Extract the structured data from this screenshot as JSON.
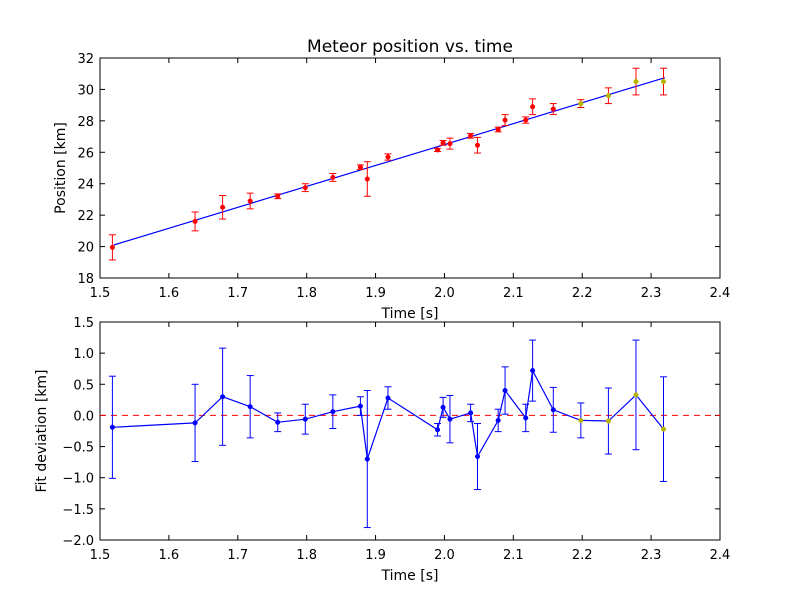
{
  "chart_data": [
    {
      "type": "scatter",
      "title": "Meteor position vs. time",
      "xlabel": "Time [s]",
      "ylabel": "Position [km]",
      "xlim": [
        1.5,
        2.4
      ],
      "ylim": [
        18,
        32
      ],
      "xticks": [
        "1.5",
        "1.6",
        "1.7",
        "1.8",
        "1.9",
        "2.0",
        "2.1",
        "2.2",
        "2.3",
        "2.4"
      ],
      "yticks": [
        "18",
        "20",
        "22",
        "24",
        "26",
        "28",
        "30",
        "32"
      ],
      "grid": false,
      "colors": {
        "points": "#ff0000",
        "late_points": "#b5b500",
        "errorbars": "#ff0000",
        "fit": "#0000ff"
      },
      "fit_line": {
        "x": [
          1.52,
          2.32
        ],
        "y": [
          20.1,
          30.75
        ]
      },
      "series": [
        {
          "x": [
            1.518,
            1.638,
            1.678,
            1.718,
            1.758,
            1.798,
            1.838,
            1.878,
            1.888,
            1.918,
            1.99,
            1.998,
            2.008,
            2.038,
            2.048,
            2.078,
            2.088,
            2.118,
            2.128,
            2.158,
            2.198,
            2.238,
            2.278,
            2.318
          ],
          "y": [
            19.95,
            21.6,
            22.5,
            22.9,
            23.2,
            23.75,
            24.4,
            25.05,
            24.3,
            25.7,
            26.15,
            26.6,
            26.55,
            27.05,
            26.45,
            27.45,
            28.05,
            28.05,
            28.9,
            28.75,
            29.1,
            29.6,
            30.5,
            30.5
          ],
          "yerr": [
            0.8,
            0.6,
            0.75,
            0.5,
            0.15,
            0.25,
            0.25,
            0.15,
            1.1,
            0.2,
            0.1,
            0.15,
            0.35,
            0.15,
            0.5,
            0.15,
            0.35,
            0.2,
            0.5,
            0.35,
            0.25,
            0.5,
            0.85,
            0.85
          ]
        }
      ]
    },
    {
      "type": "line",
      "title": "",
      "xlabel": "Time [s]",
      "ylabel": "Fit deviation [km]",
      "xlim": [
        1.5,
        2.4
      ],
      "ylim": [
        -2.0,
        1.5
      ],
      "xticks": [
        "1.5",
        "1.6",
        "1.7",
        "1.8",
        "1.9",
        "2.0",
        "2.1",
        "2.2",
        "2.3",
        "2.4"
      ],
      "yticks": [
        "1.5",
        "1.0",
        "0.5",
        "0.0",
        "−0.5",
        "−1.0",
        "−1.5",
        "−2.0"
      ],
      "grid": false,
      "reference_line": {
        "y": 0.0,
        "style": "dashed",
        "color": "#ff0000"
      },
      "colors": {
        "line": "#0000ff",
        "late_points": "#b5b500"
      },
      "series": [
        {
          "x": [
            1.518,
            1.638,
            1.678,
            1.718,
            1.758,
            1.798,
            1.838,
            1.878,
            1.888,
            1.918,
            1.99,
            1.998,
            2.008,
            2.038,
            2.048,
            2.078,
            2.088,
            2.118,
            2.128,
            2.158,
            2.198,
            2.238,
            2.278,
            2.318
          ],
          "y": [
            -0.19,
            -0.12,
            0.3,
            0.14,
            -0.11,
            -0.06,
            0.06,
            0.15,
            -0.7,
            0.28,
            -0.23,
            0.13,
            -0.06,
            0.04,
            -0.66,
            -0.08,
            0.4,
            -0.04,
            0.72,
            0.09,
            -0.08,
            -0.09,
            0.33,
            -0.22
          ],
          "yerr": [
            0.82,
            0.62,
            0.78,
            0.5,
            0.15,
            0.24,
            0.27,
            0.15,
            1.1,
            0.18,
            0.1,
            0.16,
            0.38,
            0.14,
            0.53,
            0.18,
            0.38,
            0.22,
            0.49,
            0.36,
            0.28,
            0.53,
            0.88,
            0.84
          ]
        }
      ]
    }
  ]
}
